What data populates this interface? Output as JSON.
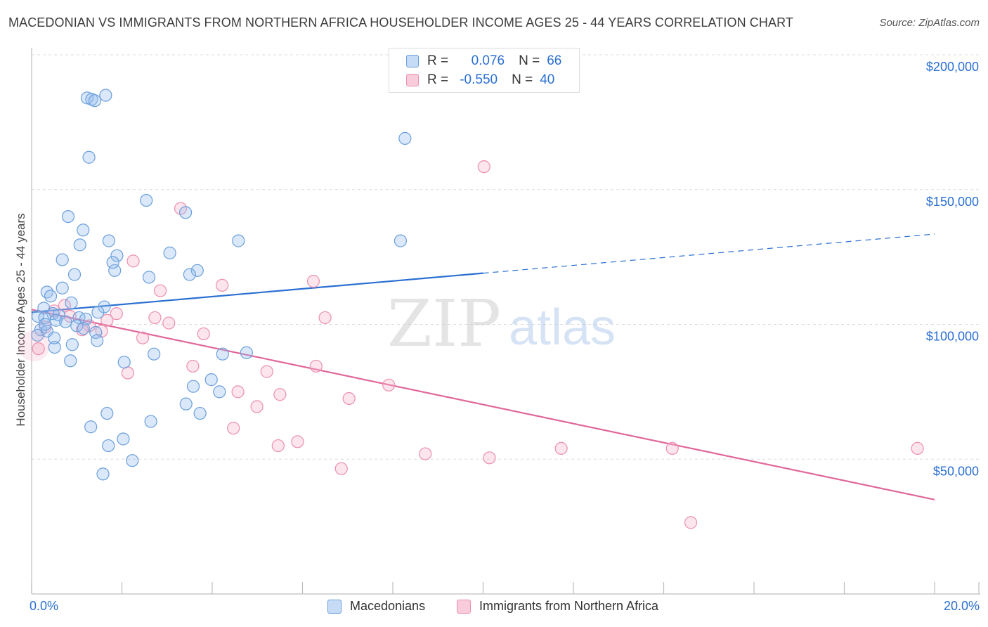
{
  "title": "MACEDONIAN VS IMMIGRANTS FROM NORTHERN AFRICA HOUSEHOLDER INCOME AGES 25 - 44 YEARS CORRELATION CHART",
  "source": "Source: ZipAtlas.com",
  "colors": {
    "blue": "#6b9fdc",
    "pink": "#ec8fae",
    "blue_line": "#2a6fd1",
    "pink_line": "#e0679a",
    "axis_text": "#2a6fd1"
  },
  "legend_top": {
    "rows": [
      {
        "r_label": "R =",
        "r_value": "0.076",
        "n_label": "N =",
        "n_value": "66"
      },
      {
        "r_label": "R =",
        "r_value": "-0.550",
        "n_label": "N =",
        "n_value": "40"
      }
    ]
  },
  "legend_bottom": {
    "macedonians": "Macedonians",
    "immigrants": "Immigrants from Northern Africa"
  },
  "watermark": {
    "zip": "ZIP",
    "atlas": "atlas"
  },
  "chart_data": {
    "type": "scatter",
    "xlabel": "",
    "ylabel": "Householder Income Ages 25 - 44 years",
    "xlim": [
      0,
      20
    ],
    "ylim": [
      0,
      210000
    ],
    "x_tick_labels": {
      "left": "0.0%",
      "right": "20.0%"
    },
    "y_ticks": [
      {
        "value": 50000,
        "label": "$50,000"
      },
      {
        "value": 100000,
        "label": "$100,000"
      },
      {
        "value": 150000,
        "label": "$150,000"
      },
      {
        "value": 200000,
        "label": "$200,000"
      }
    ],
    "grid": true,
    "legend_position": "top-center",
    "series": [
      {
        "name": "Macedonians",
        "r": 0.076,
        "n": 66,
        "trend": {
          "x": [
            0,
            10.0
          ],
          "y": [
            104500,
            119000
          ],
          "dashed_to": [
            20.0,
            133500
          ]
        },
        "points": [
          [
            1.64,
            185000
          ],
          [
            1.23,
            184000
          ],
          [
            1.33,
            183500
          ],
          [
            1.4,
            183000
          ],
          [
            8.27,
            169000
          ],
          [
            1.27,
            162000
          ],
          [
            2.54,
            146000
          ],
          [
            3.41,
            141500
          ],
          [
            0.81,
            140000
          ],
          [
            1.14,
            135000
          ],
          [
            1.07,
            129500
          ],
          [
            1.71,
            131000
          ],
          [
            4.58,
            131000
          ],
          [
            8.17,
            131000
          ],
          [
            0.68,
            124000
          ],
          [
            1.89,
            125500
          ],
          [
            3.06,
            126500
          ],
          [
            0.95,
            118500
          ],
          [
            1.84,
            120000
          ],
          [
            2.6,
            117500
          ],
          [
            3.67,
            120000
          ],
          [
            3.5,
            118500
          ],
          [
            0.68,
            113500
          ],
          [
            0.34,
            112000
          ],
          [
            0.88,
            108000
          ],
          [
            0.42,
            110500
          ],
          [
            1.61,
            106500
          ],
          [
            0.27,
            106000
          ],
          [
            0.47,
            104000
          ],
          [
            0.6,
            103500
          ],
          [
            0.14,
            103000
          ],
          [
            0.29,
            102500
          ],
          [
            1.05,
            102500
          ],
          [
            1.2,
            102000
          ],
          [
            0.54,
            101500
          ],
          [
            0.75,
            101000
          ],
          [
            1.0,
            99500
          ],
          [
            1.47,
            104500
          ],
          [
            0.2,
            98000
          ],
          [
            0.34,
            97500
          ],
          [
            1.15,
            98500
          ],
          [
            1.42,
            97000
          ],
          [
            0.13,
            96000
          ],
          [
            0.9,
            92500
          ],
          [
            1.45,
            94000
          ],
          [
            0.51,
            91500
          ],
          [
            4.76,
            89500
          ],
          [
            2.71,
            89000
          ],
          [
            4.23,
            89000
          ],
          [
            0.86,
            86500
          ],
          [
            2.05,
            86000
          ],
          [
            3.98,
            79500
          ],
          [
            3.58,
            77000
          ],
          [
            4.16,
            75000
          ],
          [
            3.42,
            70500
          ],
          [
            3.73,
            67000
          ],
          [
            1.67,
            67000
          ],
          [
            2.64,
            64000
          ],
          [
            1.31,
            62000
          ],
          [
            2.03,
            57500
          ],
          [
            1.7,
            55000
          ],
          [
            2.23,
            49500
          ],
          [
            1.58,
            44500
          ],
          [
            0.3,
            100000
          ],
          [
            1.8,
            123000
          ],
          [
            0.5,
            95000
          ]
        ]
      },
      {
        "name": "Immigrants from Northern Africa",
        "r": -0.55,
        "n": 40,
        "trend": {
          "x": [
            0,
            20.0
          ],
          "y": [
            105500,
            35000
          ]
        },
        "points": [
          [
            10.02,
            158500
          ],
          [
            3.3,
            143000
          ],
          [
            2.25,
            123500
          ],
          [
            6.24,
            116000
          ],
          [
            4.22,
            114500
          ],
          [
            2.85,
            112500
          ],
          [
            0.73,
            107000
          ],
          [
            1.88,
            104000
          ],
          [
            2.73,
            102500
          ],
          [
            6.5,
            102500
          ],
          [
            0.85,
            103000
          ],
          [
            1.67,
            101500
          ],
          [
            3.04,
            100500
          ],
          [
            1.28,
            99500
          ],
          [
            1.12,
            98000
          ],
          [
            1.55,
            97500
          ],
          [
            3.81,
            96500
          ],
          [
            2.46,
            95000
          ],
          [
            3.57,
            84500
          ],
          [
            6.3,
            84500
          ],
          [
            5.21,
            82500
          ],
          [
            2.13,
            82000
          ],
          [
            7.91,
            77500
          ],
          [
            4.57,
            75000
          ],
          [
            5.5,
            74000
          ],
          [
            7.03,
            72500
          ],
          [
            4.99,
            69500
          ],
          [
            4.47,
            61500
          ],
          [
            5.89,
            56500
          ],
          [
            5.46,
            55000
          ],
          [
            11.73,
            54000
          ],
          [
            14.19,
            54000
          ],
          [
            19.62,
            54000
          ],
          [
            8.72,
            52000
          ],
          [
            10.14,
            50500
          ],
          [
            6.86,
            46500
          ],
          [
            14.6,
            26500
          ],
          [
            0.15,
            91000
          ],
          [
            0.3,
            99000
          ],
          [
            0.5,
            105000
          ]
        ]
      }
    ]
  }
}
